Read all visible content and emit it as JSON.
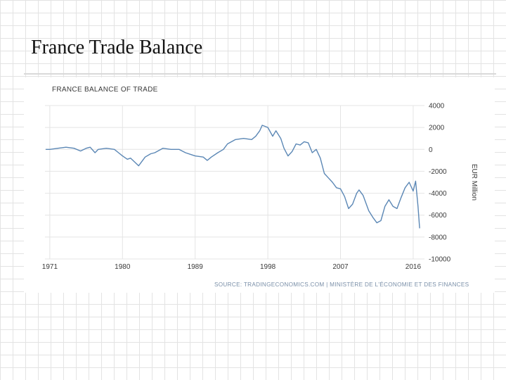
{
  "slide": {
    "title": "France Trade Balance"
  },
  "colors": {
    "line": "#5b87b5",
    "grid": "#e4e4e4",
    "text": "#3a3a3a",
    "source": "#7a8fa8"
  },
  "chart_data": {
    "type": "line",
    "title": "FRANCE BALANCE OF TRADE",
    "xlabel": "",
    "ylabel": "EUR Million",
    "xlim": [
      1970.4,
      2017.4
    ],
    "ylim": [
      -10000,
      4000
    ],
    "yticks": [
      4000,
      2000,
      0,
      -2000,
      -4000,
      -6000,
      -8000,
      -10000
    ],
    "xticks": [
      1971,
      1980,
      1989,
      1998,
      2007,
      2016
    ],
    "source": "SOURCE: TRADINGECONOMICS.COM | MINISTÈRE DE L'ÉCONOMIE ET DES FINANCES",
    "series": [
      {
        "name": "Balance of Trade",
        "x": [
          1970.5,
          1971,
          1972,
          1973,
          1974,
          1974.8,
          1975.5,
          1976,
          1976.6,
          1977,
          1978,
          1979,
          1979.5,
          1980,
          1980.6,
          1981,
          1982,
          1982.8,
          1983.5,
          1984,
          1985,
          1986,
          1987,
          1987.8,
          1988.6,
          1989,
          1990,
          1990.5,
          1991,
          1991.8,
          1992.5,
          1993,
          1994,
          1995,
          1996,
          1996.5,
          1997,
          1997.3,
          1998,
          1998.6,
          1999,
          1999.6,
          2000,
          2000.5,
          2001,
          2001.5,
          2002,
          2002.5,
          2003,
          2003.5,
          2004,
          2004.5,
          2005,
          2005.5,
          2006,
          2006.5,
          2007,
          2007.5,
          2008,
          2008.5,
          2009,
          2009.3,
          2009.8,
          2010.5,
          2011,
          2011.5,
          2012,
          2012.5,
          2013,
          2013.5,
          2014,
          2014.5,
          2015,
          2015.5,
          2016,
          2016.3,
          2016.6,
          2016.8
        ],
        "y": [
          0,
          0,
          100,
          200,
          100,
          -150,
          100,
          200,
          -300,
          0,
          100,
          0,
          -300,
          -600,
          -900,
          -800,
          -1500,
          -700,
          -400,
          -300,
          100,
          0,
          0,
          -300,
          -500,
          -600,
          -700,
          -1000,
          -700,
          -300,
          0,
          500,
          900,
          1000,
          900,
          1200,
          1700,
          2200,
          2000,
          1200,
          1700,
          1000,
          100,
          -600,
          -200,
          500,
          400,
          700,
          600,
          -300,
          0,
          -800,
          -2200,
          -2600,
          -3000,
          -3500,
          -3600,
          -4300,
          -5400,
          -5000,
          -4000,
          -3700,
          -4200,
          -5600,
          -6200,
          -6700,
          -6500,
          -5200,
          -4600,
          -5200,
          -5400,
          -4400,
          -3500,
          -3000,
          -3800,
          -2900,
          -5200,
          -7200
        ]
      }
    ]
  }
}
